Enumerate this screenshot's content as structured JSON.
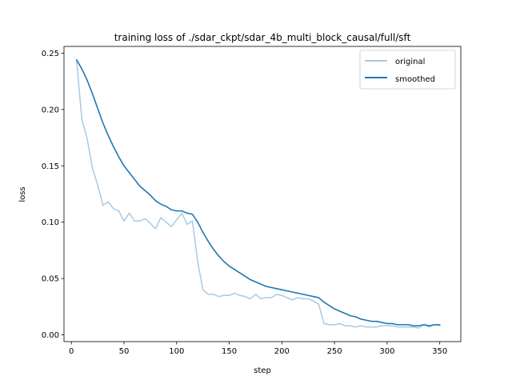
{
  "chart_data": {
    "type": "line",
    "title": "training loss of ./sdar_ckpt/sdar_4b_multi_block_causal/full/sft",
    "xlabel": "step",
    "ylabel": "loss",
    "xlim": [
      -7,
      370
    ],
    "ylim": [
      -0.006,
      0.256
    ],
    "xticks": [
      0,
      50,
      100,
      150,
      200,
      250,
      300,
      350
    ],
    "xtick_labels": [
      "0",
      "50",
      "100",
      "150",
      "200",
      "250",
      "300",
      "350"
    ],
    "yticks": [
      0.0,
      0.05,
      0.1,
      0.15,
      0.2,
      0.25
    ],
    "ytick_labels": [
      "0.00",
      "0.05",
      "0.10",
      "0.15",
      "0.20",
      "0.25"
    ],
    "grid": false,
    "legend_position": "top-right",
    "series": [
      {
        "name": "original",
        "color": "#a6cbe3",
        "x": [
          5,
          10,
          15,
          20,
          25,
          30,
          35,
          40,
          45,
          50,
          55,
          60,
          65,
          70,
          75,
          80,
          85,
          90,
          95,
          100,
          105,
          110,
          115,
          120,
          125,
          130,
          135,
          140,
          145,
          150,
          155,
          160,
          165,
          170,
          175,
          180,
          185,
          190,
          195,
          200,
          205,
          210,
          215,
          220,
          225,
          230,
          235,
          240,
          245,
          250,
          255,
          260,
          265,
          270,
          275,
          280,
          285,
          290,
          295,
          300,
          305,
          310,
          315,
          320,
          325,
          330,
          335,
          340,
          345,
          350
        ],
        "y": [
          0.243,
          0.191,
          0.174,
          0.148,
          0.133,
          0.115,
          0.118,
          0.112,
          0.11,
          0.101,
          0.108,
          0.101,
          0.101,
          0.103,
          0.099,
          0.094,
          0.104,
          0.1,
          0.096,
          0.102,
          0.108,
          0.098,
          0.101,
          0.065,
          0.04,
          0.036,
          0.036,
          0.034,
          0.035,
          0.035,
          0.037,
          0.035,
          0.034,
          0.032,
          0.036,
          0.032,
          0.033,
          0.033,
          0.036,
          0.035,
          0.033,
          0.031,
          0.033,
          0.032,
          0.032,
          0.03,
          0.027,
          0.01,
          0.009,
          0.009,
          0.01,
          0.008,
          0.008,
          0.007,
          0.008,
          0.007,
          0.007,
          0.007,
          0.008,
          0.008,
          0.008,
          0.007,
          0.007,
          0.007,
          0.007,
          0.006,
          0.009,
          0.007,
          0.009,
          0.008
        ]
      },
      {
        "name": "smoothed",
        "color": "#1f77b4",
        "x": [
          5,
          10,
          15,
          20,
          25,
          30,
          35,
          40,
          45,
          50,
          55,
          60,
          65,
          70,
          75,
          80,
          85,
          90,
          95,
          100,
          105,
          110,
          115,
          120,
          125,
          130,
          135,
          140,
          145,
          150,
          155,
          160,
          165,
          170,
          175,
          180,
          185,
          190,
          195,
          200,
          205,
          210,
          215,
          220,
          225,
          230,
          235,
          240,
          245,
          250,
          255,
          260,
          265,
          270,
          275,
          280,
          285,
          290,
          295,
          300,
          305,
          310,
          315,
          320,
          325,
          330,
          335,
          340,
          345,
          350
        ],
        "y": [
          0.244,
          0.236,
          0.226,
          0.214,
          0.201,
          0.188,
          0.177,
          0.167,
          0.158,
          0.15,
          0.144,
          0.138,
          0.132,
          0.128,
          0.124,
          0.119,
          0.116,
          0.114,
          0.111,
          0.11,
          0.11,
          0.108,
          0.107,
          0.1,
          0.091,
          0.083,
          0.076,
          0.07,
          0.065,
          0.061,
          0.058,
          0.055,
          0.052,
          0.049,
          0.047,
          0.045,
          0.043,
          0.042,
          0.041,
          0.04,
          0.039,
          0.038,
          0.037,
          0.036,
          0.035,
          0.034,
          0.033,
          0.029,
          0.026,
          0.023,
          0.021,
          0.019,
          0.017,
          0.016,
          0.014,
          0.013,
          0.012,
          0.012,
          0.011,
          0.01,
          0.01,
          0.009,
          0.009,
          0.009,
          0.008,
          0.008,
          0.009,
          0.008,
          0.009,
          0.009
        ]
      }
    ]
  }
}
